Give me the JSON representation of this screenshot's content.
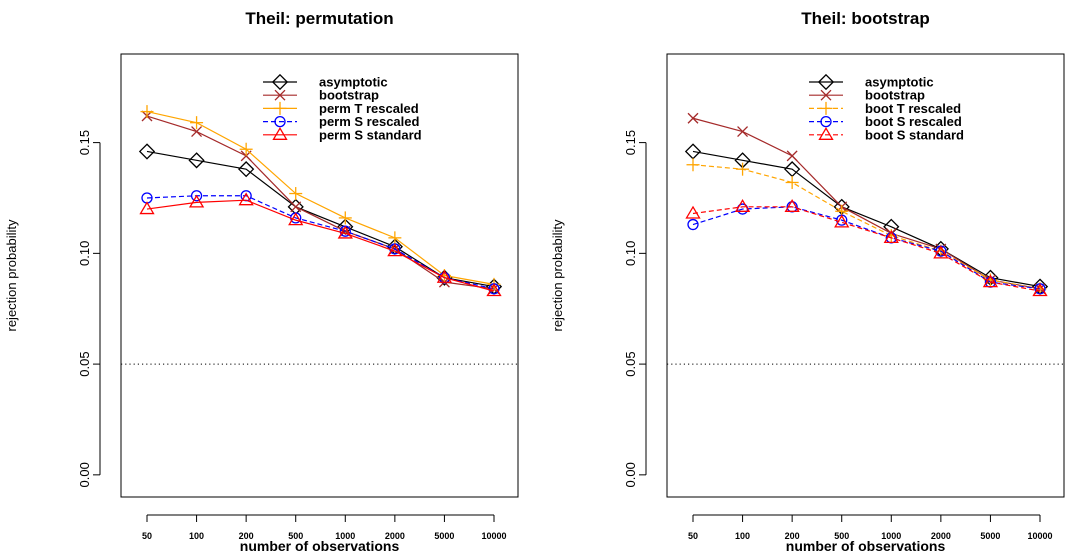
{
  "chart_data": [
    {
      "type": "line",
      "title": "Theil: permutation",
      "xlabel": "number of observations",
      "ylabel": "rejection probability",
      "categories": [
        "50",
        "100",
        "200",
        "500",
        "1000",
        "2000",
        "5000",
        "10000"
      ],
      "ylim": [
        -0.01,
        0.19
      ],
      "yticks": [
        "0.00",
        "0.05",
        "0.10",
        "0.15"
      ],
      "reference_line": 0.05,
      "legend_position": "top-right",
      "series": [
        {
          "name": "asymptotic",
          "color": "#000000",
          "marker": "diamond",
          "dash": "solid",
          "values": [
            0.146,
            0.142,
            0.138,
            0.121,
            0.112,
            0.103,
            0.089,
            0.085
          ]
        },
        {
          "name": "bootstrap",
          "color": "#a52a2a",
          "marker": "x",
          "dash": "solid",
          "values": [
            0.162,
            0.155,
            0.144,
            0.121,
            0.11,
            0.102,
            0.087,
            0.084
          ]
        },
        {
          "name": "perm T rescaled",
          "color": "#ffa500",
          "marker": "plus",
          "dash": "solid",
          "values": [
            0.164,
            0.159,
            0.147,
            0.127,
            0.116,
            0.107,
            0.09,
            0.086
          ]
        },
        {
          "name": "perm S rescaled",
          "color": "#0000ff",
          "marker": "circle",
          "dash": "dash",
          "values": [
            0.125,
            0.126,
            0.126,
            0.116,
            0.11,
            0.102,
            0.089,
            0.084
          ]
        },
        {
          "name": "perm S standard",
          "color": "#ff0000",
          "marker": "triangle",
          "dash": "solid",
          "values": [
            0.12,
            0.123,
            0.124,
            0.115,
            0.109,
            0.101,
            0.089,
            0.083
          ]
        }
      ]
    },
    {
      "type": "line",
      "title": "Theil: bootstrap",
      "xlabel": "number of observations",
      "ylabel": "rejection probability",
      "categories": [
        "50",
        "100",
        "200",
        "500",
        "1000",
        "2000",
        "5000",
        "10000"
      ],
      "ylim": [
        -0.01,
        0.19
      ],
      "yticks": [
        "0.00",
        "0.05",
        "0.10",
        "0.15"
      ],
      "reference_line": 0.05,
      "legend_position": "top-right",
      "series": [
        {
          "name": "asymptotic",
          "color": "#000000",
          "marker": "diamond",
          "dash": "solid",
          "values": [
            0.146,
            0.142,
            0.138,
            0.121,
            0.112,
            0.102,
            0.089,
            0.085
          ]
        },
        {
          "name": "bootstrap",
          "color": "#a52a2a",
          "marker": "x",
          "dash": "solid",
          "values": [
            0.161,
            0.155,
            0.144,
            0.121,
            0.109,
            0.102,
            0.088,
            0.084
          ]
        },
        {
          "name": "boot T rescaled",
          "color": "#ffa500",
          "marker": "plus",
          "dash": "dash",
          "values": [
            0.14,
            0.138,
            0.132,
            0.119,
            0.108,
            0.101,
            0.088,
            0.084
          ]
        },
        {
          "name": "boot S rescaled",
          "color": "#0000ff",
          "marker": "circle",
          "dash": "dash",
          "values": [
            0.113,
            0.12,
            0.121,
            0.115,
            0.107,
            0.101,
            0.087,
            0.084
          ]
        },
        {
          "name": "boot S standard",
          "color": "#ff0000",
          "marker": "triangle",
          "dash": "dash",
          "values": [
            0.118,
            0.121,
            0.121,
            0.114,
            0.107,
            0.1,
            0.087,
            0.083
          ]
        }
      ]
    }
  ]
}
